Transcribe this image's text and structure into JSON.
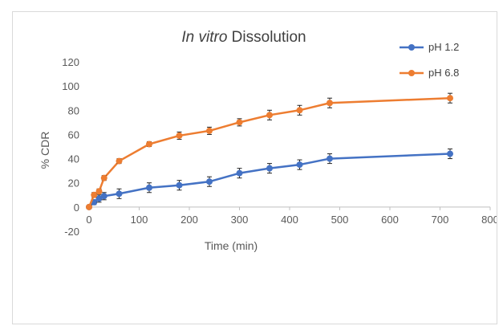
{
  "chart_data": {
    "type": "line",
    "title_italic": "In vitro",
    "title_rest": " Dissolution",
    "xlabel": "Time (min)",
    "ylabel": "% CDR",
    "xlim": [
      0,
      800
    ],
    "ylim": [
      -20,
      120
    ],
    "xticks": [
      0,
      100,
      200,
      300,
      400,
      500,
      600,
      700,
      800
    ],
    "xtick_labels": [
      "0",
      "100",
      "200",
      "300",
      "400",
      "500",
      "600",
      "700",
      "800"
    ],
    "yticks": [
      -20,
      0,
      20,
      40,
      60,
      80,
      100,
      120
    ],
    "ytick_labels": [
      "-20",
      "0",
      "20",
      "40",
      "60",
      "80",
      "100",
      "120"
    ],
    "grid": false,
    "legend_position": "top-right",
    "series": [
      {
        "name": "pH 1.2",
        "color": "#4472c4",
        "x": [
          0,
          10,
          20,
          30,
          60,
          120,
          180,
          240,
          300,
          360,
          420,
          480,
          720
        ],
        "y": [
          0,
          4,
          7,
          9,
          11,
          16,
          18,
          21,
          28,
          32,
          35,
          40,
          44
        ],
        "err": [
          1,
          2,
          3,
          3,
          4,
          4,
          4,
          4,
          4,
          4,
          4,
          4,
          4
        ]
      },
      {
        "name": "pH 6.8",
        "color": "#ed7d31",
        "x": [
          0,
          10,
          20,
          30,
          60,
          120,
          180,
          240,
          300,
          360,
          420,
          480,
          720
        ],
        "y": [
          0,
          10,
          13,
          24,
          38,
          52,
          59,
          63,
          70,
          76,
          80,
          86,
          90
        ],
        "err": [
          1,
          2,
          2,
          2,
          2,
          2,
          3,
          3,
          3,
          4,
          4,
          4,
          4
        ]
      }
    ]
  }
}
